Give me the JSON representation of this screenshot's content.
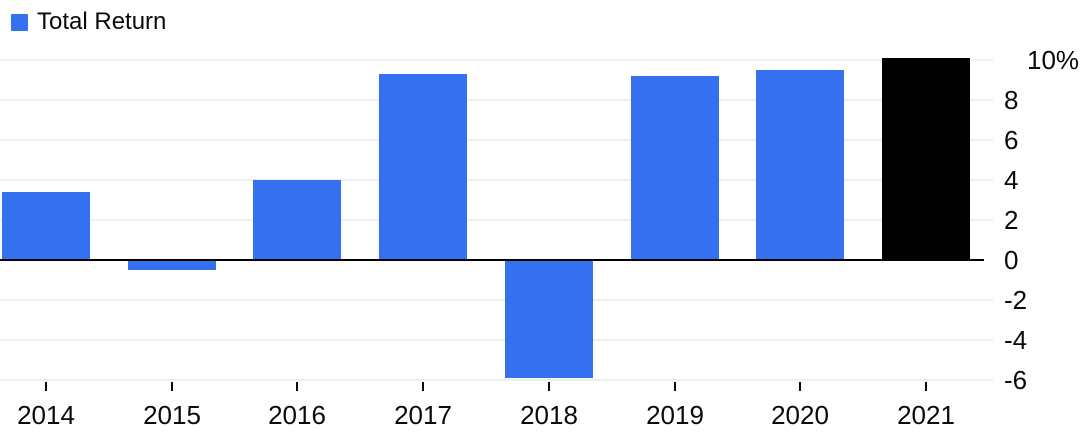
{
  "chart_data": {
    "type": "bar",
    "title": "",
    "legend": [
      {
        "label": "Total Return",
        "color": "#3470F0"
      }
    ],
    "categories": [
      "2014",
      "2015",
      "2016",
      "2017",
      "2018",
      "2019",
      "2020",
      "2021"
    ],
    "series": [
      {
        "name": "Total Return",
        "values": [
          3.4,
          -0.5,
          4.0,
          9.3,
          -5.9,
          9.2,
          9.5,
          10.1
        ]
      }
    ],
    "bar_colors": [
      "#3470F0",
      "#3470F0",
      "#3470F0",
      "#3470F0",
      "#3470F0",
      "#3470F0",
      "#3470F0",
      "#000000"
    ],
    "y_tick_values": [
      10,
      8,
      6,
      4,
      2,
      0,
      -2,
      -4,
      -6
    ],
    "y_tick_labels": [
      "10%",
      "8",
      "6",
      "4",
      "2",
      "0",
      "-2",
      "-4",
      "-6"
    ],
    "ylim": [
      -6.5,
      10.5
    ],
    "xlabel": "",
    "ylabel": "",
    "grid": true,
    "legend_position": "top-left",
    "colors": {
      "background": "#ffffff",
      "grid": "#efefef",
      "zero_line": "#000000",
      "text": "#0a0a0a"
    }
  }
}
